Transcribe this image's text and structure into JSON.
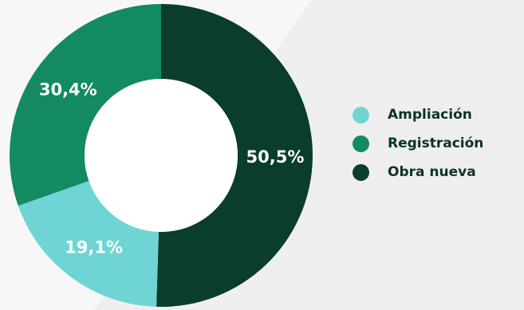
{
  "chart_data": {
    "type": "pie",
    "variant": "donut",
    "title": "",
    "slices": [
      {
        "name": "Obra nueva",
        "value": 50.5,
        "label": "50,5%",
        "color": "#0a3d2c"
      },
      {
        "name": "Ampliación",
        "value": 19.1,
        "label": "19,1%",
        "color": "#6fd4d4"
      },
      {
        "name": "Registración",
        "value": 30.4,
        "label": "30,4%",
        "color": "#138a62"
      }
    ],
    "legend": {
      "placement": "right",
      "items": [
        {
          "name": "Ampliación",
          "color": "#6fd4d4"
        },
        {
          "name": "Registración",
          "color": "#138a62"
        },
        {
          "name": "Obra nueva",
          "color": "#0a3d2c"
        }
      ]
    }
  }
}
